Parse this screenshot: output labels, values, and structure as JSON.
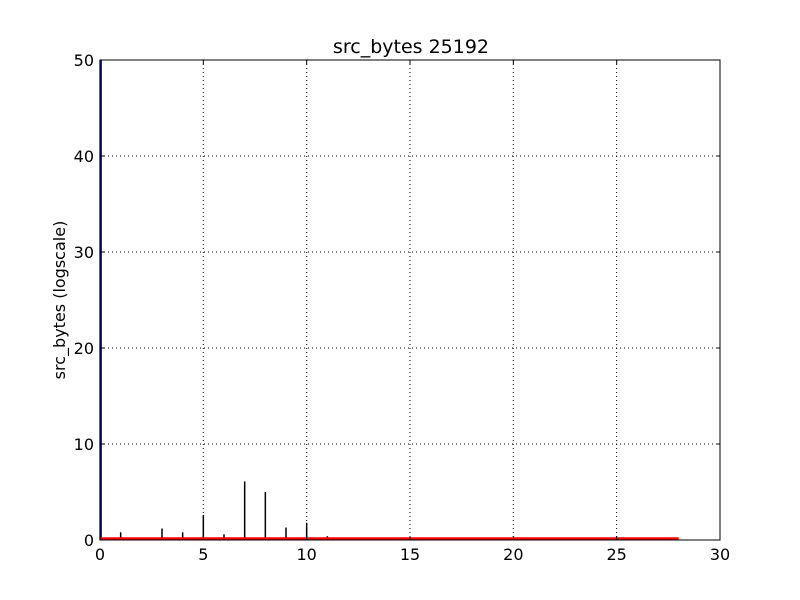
{
  "chart_data": {
    "type": "bar",
    "title": "src_bytes 25192",
    "xlabel": "",
    "ylabel": "src_bytes (logscale)",
    "xlim": [
      0,
      30
    ],
    "ylim": [
      0,
      50
    ],
    "xticks": [
      0,
      5,
      10,
      15,
      20,
      25,
      30
    ],
    "yticks": [
      0,
      10,
      20,
      30,
      40,
      50
    ],
    "grid": true,
    "series": [
      {
        "color": "#000000",
        "points": [
          {
            "x": 0.05,
            "y": 0.2
          },
          {
            "x": 1.0,
            "y": 0.8
          },
          {
            "x": 3.0,
            "y": 1.2
          },
          {
            "x": 4.0,
            "y": 0.8
          },
          {
            "x": 5.0,
            "y": 2.6
          },
          {
            "x": 6.0,
            "y": 0.6
          },
          {
            "x": 7.0,
            "y": 6.1
          },
          {
            "x": 8.0,
            "y": 5.0
          },
          {
            "x": 9.0,
            "y": 1.3
          },
          {
            "x": 10.0,
            "y": 1.8
          },
          {
            "x": 11.0,
            "y": 0.4
          }
        ]
      },
      {
        "color": "#0000cc",
        "points": [
          {
            "x": 0.03,
            "y": 50
          }
        ]
      }
    ],
    "baseline": {
      "color": "#ff0000",
      "x_start": 0,
      "x_end": 28,
      "y": 0.15
    }
  }
}
